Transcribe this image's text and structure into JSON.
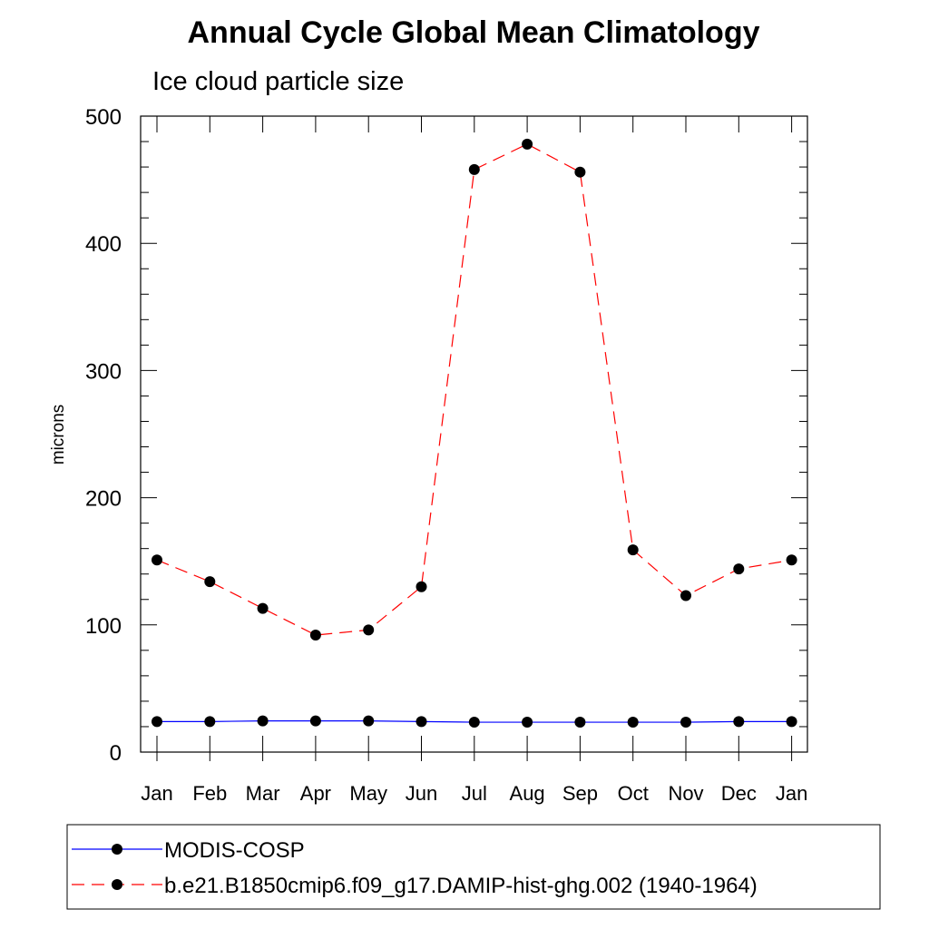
{
  "chart_data": {
    "type": "line",
    "title": "Annual Cycle Global Mean Climatology",
    "subtitle": "Ice cloud particle size",
    "ylabel": "microns",
    "xlabel": "",
    "ylim": [
      0,
      500
    ],
    "yticks": [
      0,
      100,
      200,
      300,
      400,
      500
    ],
    "categories": [
      "Jan",
      "Feb",
      "Mar",
      "Apr",
      "May",
      "Jun",
      "Jul",
      "Aug",
      "Sep",
      "Oct",
      "Nov",
      "Dec",
      "Jan"
    ],
    "grid": false,
    "legend_position": "bottom",
    "series": [
      {
        "name": "MODIS-COSP",
        "color": "#0000ff",
        "line_style": "solid",
        "marker": "filled-circle",
        "values": [
          24,
          24,
          24.5,
          24.5,
          24.5,
          24,
          23.5,
          23.5,
          23.5,
          23.5,
          23.5,
          24,
          24
        ]
      },
      {
        "name": "b.e21.B1850cmip6.f09_g17.DAMIP-hist-ghg.002 (1940-1964)",
        "color": "#ff0000",
        "line_style": "dashed",
        "marker": "filled-circle",
        "values": [
          151,
          134,
          113,
          92,
          96,
          130,
          458,
          478,
          456,
          159,
          123,
          144,
          151
        ]
      }
    ]
  }
}
